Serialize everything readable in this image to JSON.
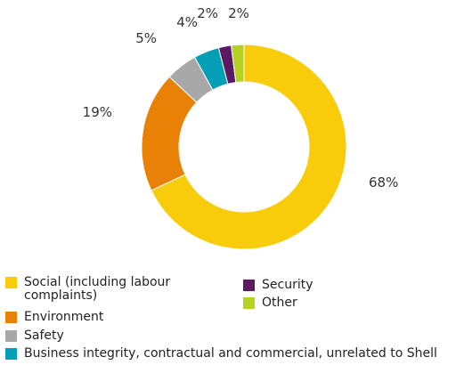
{
  "chart_data": {
    "type": "pie",
    "donut": true,
    "unit": "%",
    "slices": [
      {
        "label": "Social (including labour complaints)",
        "value": 68,
        "color": "#F9CC0B",
        "label_text": "68%"
      },
      {
        "label": "Environment",
        "value": 19,
        "color": "#E98107",
        "label_text": "19%"
      },
      {
        "label": "Safety",
        "value": 5,
        "color": "#A8A8A8",
        "label_text": "5%"
      },
      {
        "label": "Business integrity, contractual and commercial, unrelated to Shell",
        "value": 4,
        "color": "#049EB6",
        "label_text": "4%"
      },
      {
        "label": "Security",
        "value": 2,
        "color": "#5B1A62",
        "label_text": "2%"
      },
      {
        "label": "Other",
        "value": 2,
        "color": "#B6D220",
        "label_text": "2%"
      }
    ],
    "legend": {
      "items": [
        {
          "label": "Social (including labour complaints)",
          "color": "#F9CC0B"
        },
        {
          "label": "Environment",
          "color": "#E98107"
        },
        {
          "label": "Safety",
          "color": "#A8A8A8"
        },
        {
          "label": "Business integrity, contractual and commercial, unrelated to Shell",
          "color": "#049EB6"
        },
        {
          "label": "Security",
          "color": "#5B1A62"
        },
        {
          "label": "Other",
          "color": "#B6D220"
        }
      ]
    }
  }
}
